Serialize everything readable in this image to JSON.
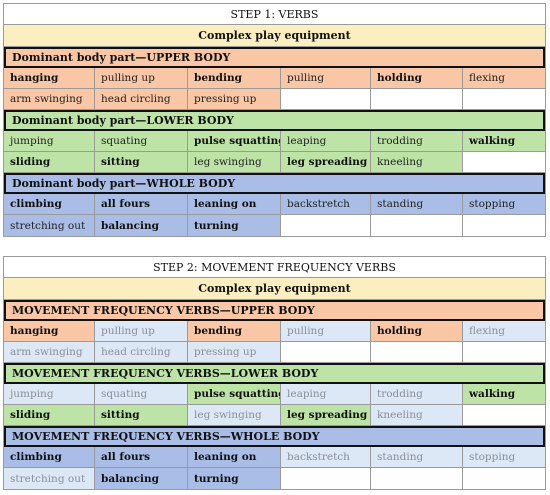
{
  "step1": {
    "title": "STEP 1: VERBS",
    "equipment": "Complex play equipment",
    "groups": [
      {
        "header": "Dominant body part—UPPER BODY",
        "rows": [
          [
            "hanging",
            "pulling up",
            "bending",
            "pulling",
            "holding",
            "flexing"
          ],
          [
            "arm swinging",
            "head circling",
            "pressing up",
            "",
            "",
            ""
          ]
        ]
      },
      {
        "header": "Dominant body part—LOWER BODY",
        "rows": [
          [
            "jumping",
            "squating",
            "pulse squatting",
            "leaping",
            "trodding",
            "walking"
          ],
          [
            "sliding",
            "sitting",
            "leg swinging",
            "leg spreading",
            "kneeling",
            ""
          ]
        ]
      },
      {
        "header": "Dominant body part—WHOLE BODY",
        "rows": [
          [
            "climbing",
            "all fours",
            "leaning on",
            "backstretch",
            "standing",
            "stopping"
          ],
          [
            "stretching out",
            "balancing",
            "turning",
            "",
            "",
            ""
          ]
        ]
      }
    ]
  },
  "step2": {
    "title": "STEP 2: MOVEMENT FREQUENCY VERBS",
    "equipment": "Complex play equipment",
    "groups": [
      {
        "header": "MOVEMENT FREQUENCY VERBS—UPPER BODY",
        "rows": [
          [
            "hanging",
            "pulling up",
            "bending",
            "pulling",
            "holding",
            "flexing"
          ],
          [
            "arm swinging",
            "head circling",
            "pressing up",
            "",
            "",
            ""
          ]
        ]
      },
      {
        "header": "MOVEMENT FREQUENCY VERBS—LOWER BODY",
        "rows": [
          [
            "jumping",
            "squating",
            "pulse squatting",
            "leaping",
            "trodding",
            "walking"
          ],
          [
            "sliding",
            "sitting",
            "leg swinging",
            "leg spreading",
            "kneeling",
            ""
          ]
        ]
      },
      {
        "header": "MOVEMENT FREQUENCY VERBS—WHOLE BODY",
        "rows": [
          [
            "climbing",
            "all fours",
            "leaning on",
            "backstretch",
            "standing",
            "stopping"
          ],
          [
            "stretching out",
            "balancing",
            "turning",
            "",
            "",
            ""
          ]
        ]
      }
    ]
  }
}
